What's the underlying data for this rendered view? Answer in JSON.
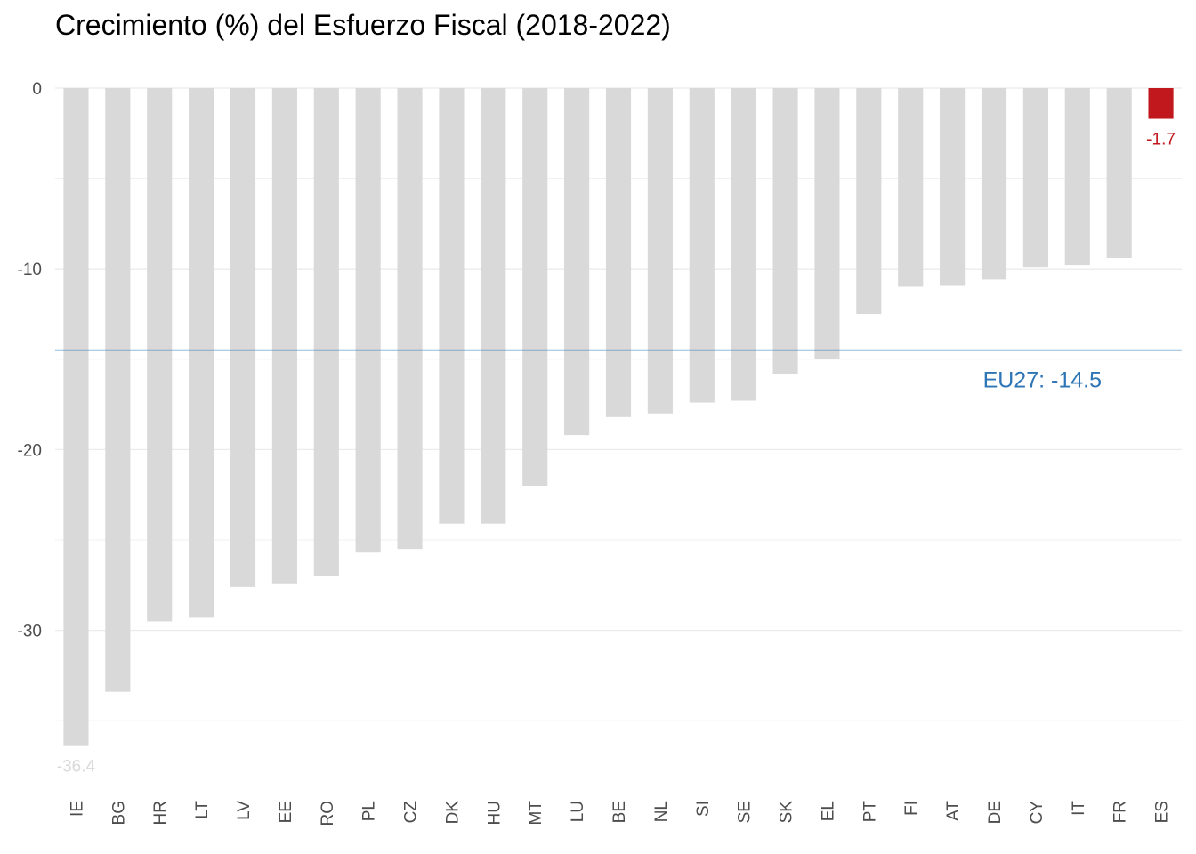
{
  "chart_data": {
    "type": "bar",
    "title": "Crecimiento (%) del Esfuerzo Fiscal (2018-2022)",
    "xlabel": "",
    "ylabel": "",
    "ylim": [
      -38,
      0
    ],
    "yticks": [
      0,
      -10,
      -20,
      -30
    ],
    "grid": true,
    "categories": [
      "IE",
      "BG",
      "HR",
      "LT",
      "LV",
      "EE",
      "RO",
      "PL",
      "CZ",
      "DK",
      "HU",
      "MT",
      "LU",
      "BE",
      "NL",
      "SI",
      "SE",
      "SK",
      "EL",
      "PT",
      "FI",
      "AT",
      "DE",
      "CY",
      "IT",
      "FR",
      "ES"
    ],
    "values": [
      -36.4,
      -33.4,
      -29.5,
      -29.3,
      -27.6,
      -27.4,
      -27.0,
      -25.7,
      -25.5,
      -24.1,
      -24.1,
      -22.0,
      -19.2,
      -18.2,
      -18.0,
      -17.4,
      -17.3,
      -15.8,
      -15.0,
      -12.5,
      -11.0,
      -10.9,
      -10.6,
      -9.9,
      -9.8,
      -9.4,
      -1.7
    ],
    "bar_color": "#d9d9d9",
    "highlight": {
      "category": "ES",
      "color": "#c0181c"
    },
    "labeled": [
      {
        "category": "IE",
        "text": "-36.4",
        "color": "#d9d9d9"
      },
      {
        "category": "ES",
        "text": "-1.7",
        "color": "#c0181c"
      }
    ],
    "reference_line": {
      "value": -14.5,
      "label": "EU27: -14.5",
      "color": "#2e75b6"
    }
  }
}
